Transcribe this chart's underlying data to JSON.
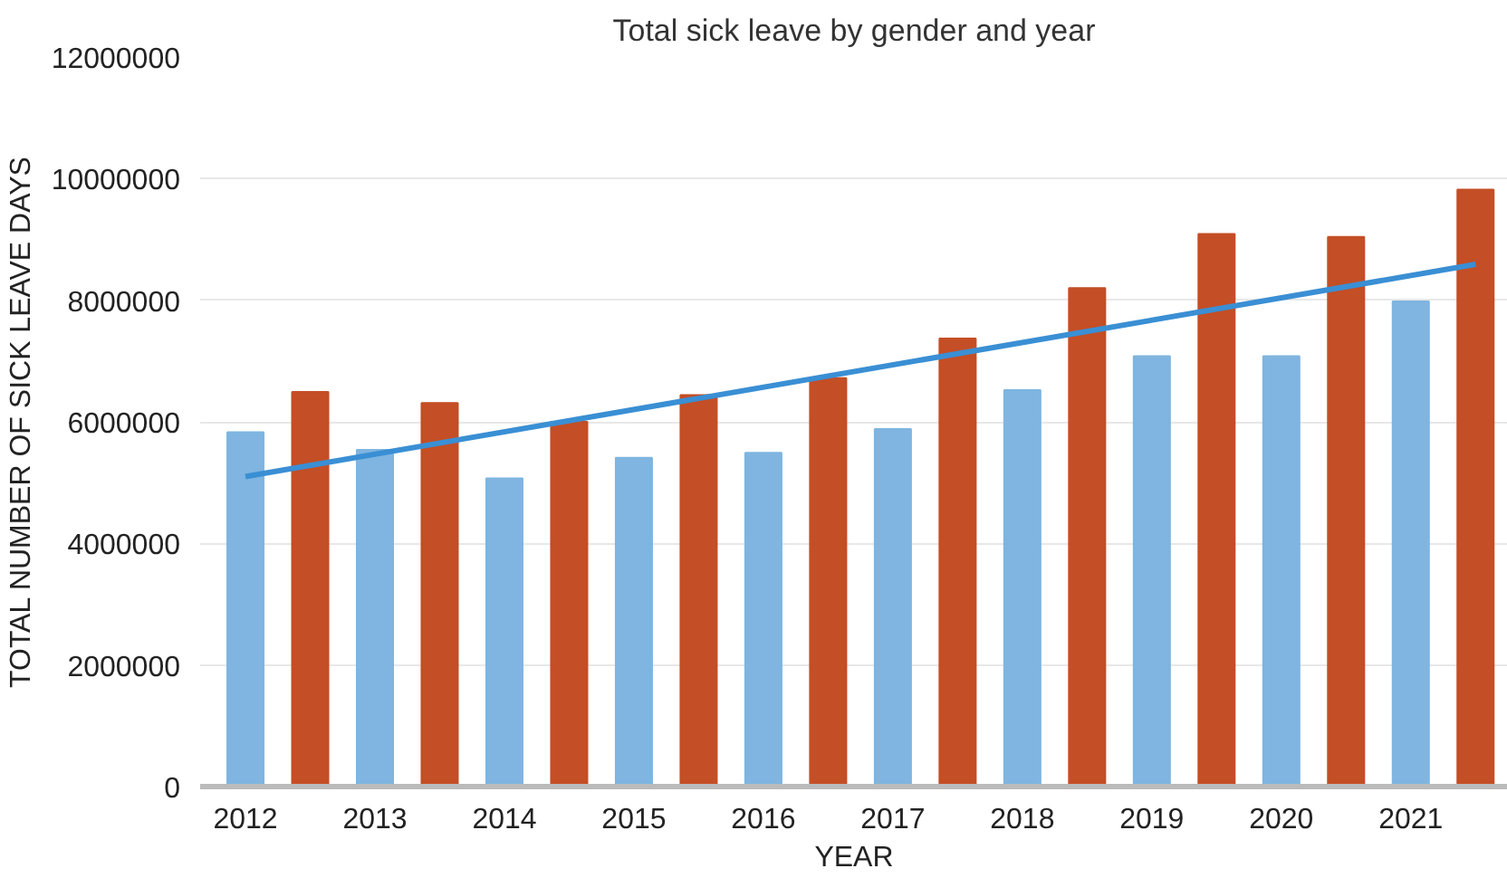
{
  "chart_data": {
    "type": "bar",
    "title": "Total sick leave by gender and year",
    "xlabel": "YEAR",
    "ylabel": "TOTAL NUMBER OF SICK LEAVE DAYS",
    "series": [
      {
        "color": "#7fb5e0",
        "x": [
          2012,
          2013,
          2014,
          2015,
          2016,
          2017,
          2018,
          2019,
          2020,
          2021
        ],
        "values": [
          5830000,
          5540000,
          5070000,
          5410000,
          5490000,
          5880000,
          6520000,
          7080000,
          7080000,
          7980000
        ]
      },
      {
        "color": "#c44e25",
        "x": [
          2012.5,
          2013.5,
          2014.5,
          2015.5,
          2016.5,
          2017.5,
          2018.5,
          2019.5,
          2020.5,
          2021.5
        ],
        "values": [
          6490000,
          6310000,
          6000000,
          6440000,
          6720000,
          7370000,
          8200000,
          9090000,
          9040000,
          9820000
        ]
      },
      {
        "type": "line",
        "color": "#3a8fd4",
        "x": [
          2012,
          2021.5
        ],
        "values": [
          5100000,
          8590000
        ]
      }
    ],
    "xlim": [
      2011.65,
      2021.75
    ],
    "xticks": [
      2012,
      2013,
      2014,
      2015,
      2016,
      2017,
      2018,
      2019,
      2020,
      2021
    ],
    "ylim": [
      0,
      12000000
    ],
    "yticks": [
      0,
      2000000,
      4000000,
      6000000,
      8000000,
      10000000,
      12000000
    ],
    "grid": "y"
  }
}
